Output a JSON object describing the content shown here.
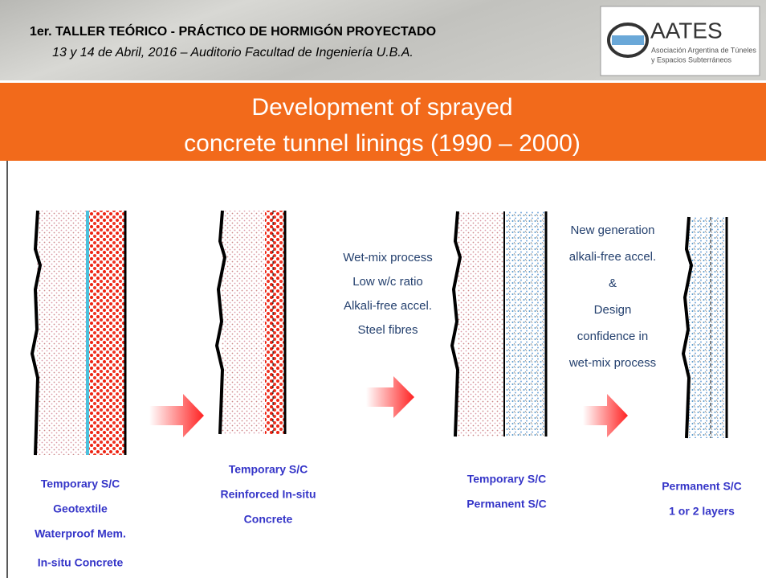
{
  "header": {
    "title": "1er. TALLER TEÓRICO - PRÁCTICO DE HORMIGÓN PROYECTADO",
    "subtitle": "13 y 14 de Abril, 2016 – Auditorio Facultad de Ingeniería U.B.A."
  },
  "logo": {
    "name": "AATES",
    "tagline": [
      "Asociación Argentina de Túneles",
      "y Espacios Subterráneos"
    ]
  },
  "slide_title": [
    "Development of sprayed",
    "concrete tunnel linings (1990 – 2000)"
  ],
  "process_1": [
    "Wet-mix process",
    "Low w/c ratio",
    "Alkali-free accel.",
    "Steel fibres"
  ],
  "process_2": [
    "New generation",
    "alkali-free accel.",
    "&",
    "Design",
    "confidence in",
    "wet-mix process"
  ],
  "stages": [
    [
      "Temporary S/C",
      "Geotextile",
      "Waterproof Mem.",
      "In-situ Concrete"
    ],
    [
      "Temporary S/C",
      "Reinforced In-situ",
      "Concrete"
    ],
    [
      "Temporary S/C",
      "Permanent S/C"
    ],
    [
      "Permanent S/C",
      "1 or 2 layers"
    ]
  ]
}
